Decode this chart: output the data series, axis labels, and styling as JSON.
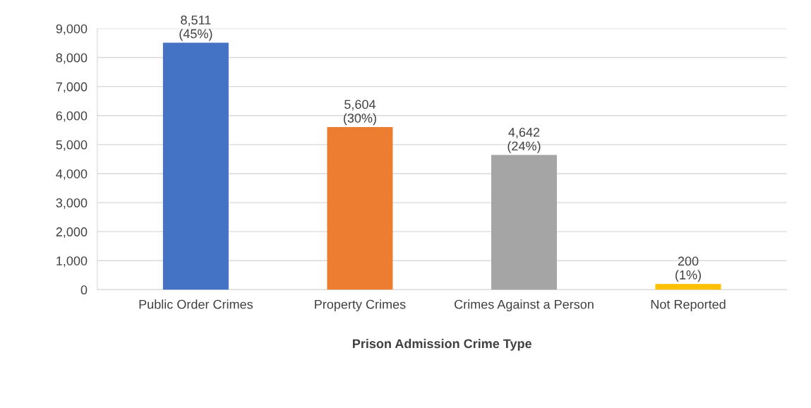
{
  "chart_data": {
    "type": "bar",
    "xlabel": "Prison Admission Crime Type",
    "categories": [
      "Public Order Crimes",
      "Property Crimes",
      "Crimes Against a Person",
      "Not Reported"
    ],
    "values": [
      8511,
      5604,
      4642,
      200
    ],
    "colors": [
      "#4472c4",
      "#ed7d31",
      "#a5a5a5",
      "#ffc000"
    ],
    "value_labels": [
      "8,511\n(45%)",
      "5,604\n(30%)",
      "4,642\n(24%)",
      "200\n(1%)"
    ],
    "ylim": [
      0,
      9000
    ],
    "yticks": [
      0,
      {
        "value": 1000,
        "label": "1,000"
      },
      {
        "value": 2000,
        "label": "2,000"
      },
      {
        "value": 3000,
        "label": "3,000"
      },
      {
        "value": 4000,
        "label": "4,000"
      },
      {
        "value": 5000,
        "label": "5,000"
      },
      {
        "value": 6000,
        "label": "6,000"
      },
      {
        "value": 7000,
        "label": "7,000"
      },
      {
        "value": 8000,
        "label": "8,000"
      },
      {
        "value": 9000,
        "label": "9,000"
      }
    ],
    "grid": "y"
  }
}
